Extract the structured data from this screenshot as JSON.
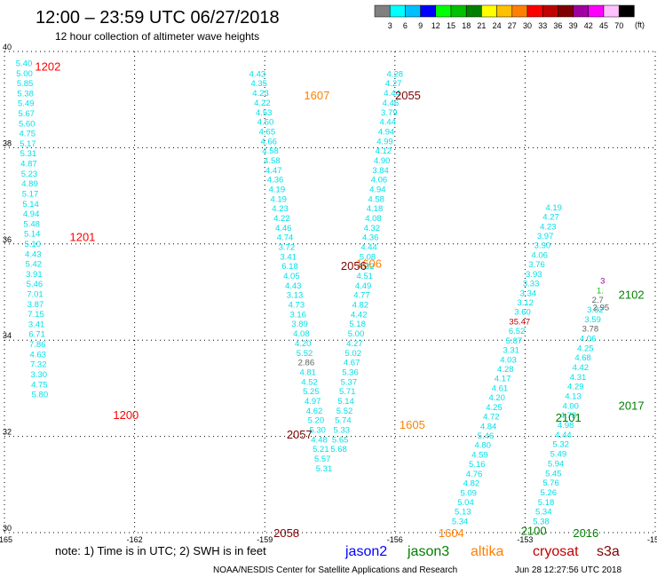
{
  "header": {
    "title": "12:00 – 23:59 UTC 06/27/2018",
    "subtitle": "12 hour collection of altimeter wave heights"
  },
  "legend": {
    "unit": "(ft)",
    "items": [
      {
        "label": "3",
        "color": "#808080"
      },
      {
        "label": "6",
        "color": "#00ffff"
      },
      {
        "label": "9",
        "color": "#00c0ff"
      },
      {
        "label": "12",
        "color": "#0000ff"
      },
      {
        "label": "15",
        "color": "#00ff00"
      },
      {
        "label": "18",
        "color": "#00c000"
      },
      {
        "label": "21",
        "color": "#008000"
      },
      {
        "label": "24",
        "color": "#ffff00"
      },
      {
        "label": "27",
        "color": "#ffc000"
      },
      {
        "label": "30",
        "color": "#ff8000"
      },
      {
        "label": "33",
        "color": "#ff0000"
      },
      {
        "label": "36",
        "color": "#c00000"
      },
      {
        "label": "39",
        "color": "#800000"
      },
      {
        "label": "42",
        "color": "#a000a0"
      },
      {
        "label": "45",
        "color": "#ff00ff"
      },
      {
        "label": "70",
        "color": "#ffc0ff"
      },
      {
        "label": "",
        "color": "#000000"
      }
    ]
  },
  "footer": {
    "note": "note:  1) Time is in UTC;  2) SWH is in feet",
    "credit": "NOAA/NESDIS Center for Satellite Applications and Research",
    "timestamp": "Jun 28 12:27:56 UTC 2018",
    "satellites": [
      {
        "name": "jason2",
        "color": "#0000ff"
      },
      {
        "name": "jason3",
        "color": "#008000"
      },
      {
        "name": "altika",
        "color": "#ff8000"
      },
      {
        "name": "cryosat",
        "color": "#c00000"
      },
      {
        "name": "s3a",
        "color": "#800000"
      }
    ]
  },
  "chart_data": {
    "type": "scatter",
    "x_axis": {
      "range": [
        -165,
        -150
      ],
      "ticks": [
        "-165",
        "-162",
        "-159",
        "-156",
        "-153",
        "-150"
      ]
    },
    "y_axis": {
      "range": [
        30,
        40
      ],
      "ticks": [
        "30",
        "32",
        "34",
        "36",
        "38",
        "40"
      ]
    },
    "grid": true,
    "time_labels": [
      {
        "text": "1202",
        "lon": -164.0,
        "lat": 39.7,
        "color": "#ff0000"
      },
      {
        "text": "1201",
        "lon": -163.2,
        "lat": 36.15,
        "color": "#ff0000"
      },
      {
        "text": "1200",
        "lon": -162.2,
        "lat": 32.45,
        "color": "#ff0000"
      },
      {
        "text": "1607",
        "lon": -157.8,
        "lat": 39.1,
        "color": "#ff8000"
      },
      {
        "text": "2055",
        "lon": -155.7,
        "lat": 39.1,
        "color": "#800000"
      },
      {
        "text": "1606",
        "lon": -156.6,
        "lat": 35.6,
        "color": "#ff8000"
      },
      {
        "text": "2056",
        "lon": -156.95,
        "lat": 35.55,
        "color": "#800000"
      },
      {
        "text": "2057",
        "lon": -158.2,
        "lat": 32.05,
        "color": "#800000"
      },
      {
        "text": "1605",
        "lon": -155.6,
        "lat": 32.25,
        "color": "#ff8000"
      },
      {
        "text": "2058",
        "lon": -158.5,
        "lat": 30.0,
        "color": "#800000"
      },
      {
        "text": "1604",
        "lon": -154.7,
        "lat": 30.0,
        "color": "#ff8000"
      },
      {
        "text": "2100",
        "lon": -152.8,
        "lat": 30.05,
        "color": "#008000"
      },
      {
        "text": "2016",
        "lon": -151.6,
        "lat": 30.0,
        "color": "#008000"
      },
      {
        "text": "2101",
        "lon": -152.0,
        "lat": 32.4,
        "color": "#008000"
      },
      {
        "text": "2017",
        "lon": -150.55,
        "lat": 32.65,
        "color": "#008000"
      },
      {
        "text": "2102",
        "lon": -150.55,
        "lat": 34.95,
        "color": "#008000"
      }
    ],
    "series": [
      {
        "color": "#00e0e8",
        "lat_top": 39.77,
        "dy": 0.2086,
        "lon_top": -164.55,
        "dlon": 0.0111,
        "values": [
          "5.40",
          "5.00",
          "5.85",
          "5.38",
          "5.49",
          "5.67",
          "5.60",
          "4.75",
          "5.17",
          "5.31",
          "4.87",
          "5.23",
          "4.89",
          "5.17",
          "5.14",
          "4.94",
          "5.48",
          "5.14",
          "5.10",
          "4.43",
          "5.42",
          "3.91",
          "5.46",
          "7.01",
          "3.87",
          "7.15",
          "3.41",
          "6.71",
          "7.86",
          "4.63",
          "7.32",
          "3.30",
          "4.75",
          "5.80"
        ]
      },
      {
        "color": "#00e0e8",
        "lat_top": 39.55,
        "dy": 0.2,
        "lon_top": -159.17,
        "dlon": 0.0375,
        "values": [
          "4.43",
          "4.35",
          "4.23",
          "4.22",
          "4.53",
          "4.50",
          "4.65",
          "4.66",
          "4.58",
          "4.58",
          "4.47",
          "4.36",
          "4.19",
          "4.19",
          "4.23",
          "4.22",
          "4.46",
          "4.74",
          "3.72",
          "3.41",
          "6.18",
          "4.05",
          "4.43",
          "3.13",
          "4.73",
          "3.16",
          "3.89",
          "4.08",
          "4.20",
          "5.52",
          "2.86",
          "4.81",
          "4.52",
          "5.25",
          "4.97",
          "4.62",
          "5.20",
          "5.30",
          "4.48",
          "5.21",
          "5.57",
          "5.31"
        ]
      },
      {
        "color": "#00e0e8",
        "lat_top": 39.55,
        "dy": 0.2,
        "lon_top": -156.0,
        "dlon": -0.0332,
        "values": [
          "4.28",
          "4.27",
          "4.44",
          "4.46",
          "3.79",
          "4.44",
          "4.94",
          "4.99",
          "4.12",
          "4.90",
          "3.84",
          "4.06",
          "4.94",
          "4.58",
          "4.18",
          "4.08",
          "4.32",
          "4.36",
          "4.44",
          "5.08",
          "4.32",
          "4.51",
          "4.49",
          "4.77",
          "4.82",
          "4.42",
          "5.18",
          "5.00",
          "4.27",
          "5.02",
          "4.67",
          "5.36",
          "5.37",
          "5.71",
          "5.14",
          "5.52",
          "5.74",
          "5.33",
          "5.65",
          "5.68"
        ]
      },
      {
        "color": "#00e0e8",
        "lat_top": 30.25,
        "dy": 0.1977,
        "lon_top": -154.5,
        "dlon": 0.0655,
        "values": [
          "5.34",
          "5.13",
          "5.04",
          "5.09",
          "4.82",
          "4.76",
          "5.16",
          "4.59",
          "4.80",
          "5.46",
          "4.84",
          "4.72",
          "4.25",
          "4.20",
          "4.61",
          "4.17",
          "4.28",
          "4.03",
          "3.31",
          "5.87",
          "6.52",
          "35.47",
          "3.60",
          "3.12",
          "3.34",
          "3.33",
          "3.93",
          "3.76",
          "4.06",
          "3.90",
          "3.97",
          "4.23",
          "4.27",
          "4.19"
        ]
      },
      {
        "color": "#00e0e8",
        "lat_top": 30.25,
        "dy": 0.2,
        "lon_top": -152.63,
        "dlon": 0.0567,
        "values": [
          "5.38",
          "5.34",
          "5.18",
          "5.26",
          "5.76",
          "5.45",
          "5.94",
          "5.49",
          "5.32",
          "4.44",
          "4.98",
          "4.78",
          "4.00",
          "4.13",
          "4.29",
          "4.31",
          "4.42",
          "4.68",
          "4.25",
          "4.06",
          "3.78",
          "3.59",
          "3.82",
          "2.7",
          "1.",
          "3"
        ]
      }
    ]
  }
}
